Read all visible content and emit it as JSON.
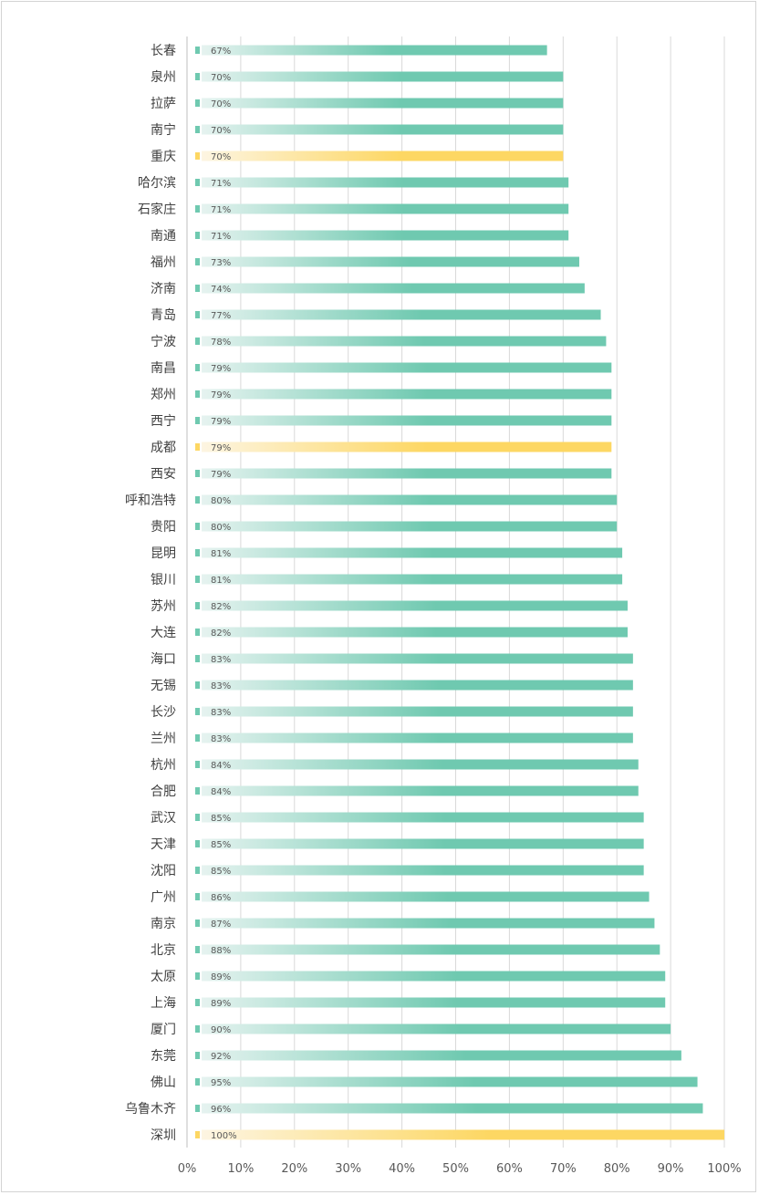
{
  "chart_data": {
    "type": "bar",
    "orientation": "horizontal",
    "categories": [
      "长春",
      "泉州",
      "拉萨",
      "南宁",
      "重庆",
      "哈尔滨",
      "石家庄",
      "南通",
      "福州",
      "济南",
      "青岛",
      "宁波",
      "南昌",
      "郑州",
      "西宁",
      "成都",
      "西安",
      "呼和浩特",
      "贵阳",
      "昆明",
      "银川",
      "苏州",
      "大连",
      "海口",
      "无锡",
      "长沙",
      "兰州",
      "杭州",
      "合肥",
      "武汉",
      "天津",
      "沈阳",
      "广州",
      "南京",
      "北京",
      "太原",
      "上海",
      "厦门",
      "东莞",
      "佛山",
      "乌鲁木齐",
      "深圳"
    ],
    "values": [
      67,
      70,
      70,
      70,
      70,
      71,
      71,
      71,
      73,
      74,
      77,
      78,
      79,
      79,
      79,
      79,
      79,
      80,
      80,
      81,
      81,
      82,
      82,
      83,
      83,
      83,
      83,
      84,
      84,
      85,
      85,
      85,
      86,
      87,
      88,
      89,
      89,
      90,
      92,
      95,
      96,
      100
    ],
    "data_labels": [
      "67%",
      "70%",
      "70%",
      "70%",
      "70%",
      "71%",
      "71%",
      "71%",
      "73%",
      "74%",
      "77%",
      "78%",
      "79%",
      "79%",
      "79%",
      "79%",
      "79%",
      "80%",
      "80%",
      "81%",
      "81%",
      "82%",
      "82%",
      "83%",
      "83%",
      "83%",
      "83%",
      "84%",
      "84%",
      "85%",
      "85%",
      "85%",
      "86%",
      "87%",
      "88%",
      "89%",
      "89%",
      "90%",
      "92%",
      "95%",
      "96%",
      "100%"
    ],
    "highlighted": [
      "重庆",
      "成都",
      "深圳"
    ],
    "x_ticks": [
      "0%",
      "10%",
      "20%",
      "30%",
      "40%",
      "50%",
      "60%",
      "70%",
      "80%",
      "90%",
      "100%"
    ],
    "xlim": [
      0,
      100
    ],
    "grid": true,
    "title": "",
    "xlabel": "",
    "ylabel": "",
    "colors": {
      "bar_start": "#e6f3f0",
      "bar_end": "#6fc9b0",
      "highlight_start": "#fdf5e2",
      "highlight_end": "#fdd763",
      "gridline": "#d9d9d9",
      "axis": "#bfbfbf"
    }
  }
}
